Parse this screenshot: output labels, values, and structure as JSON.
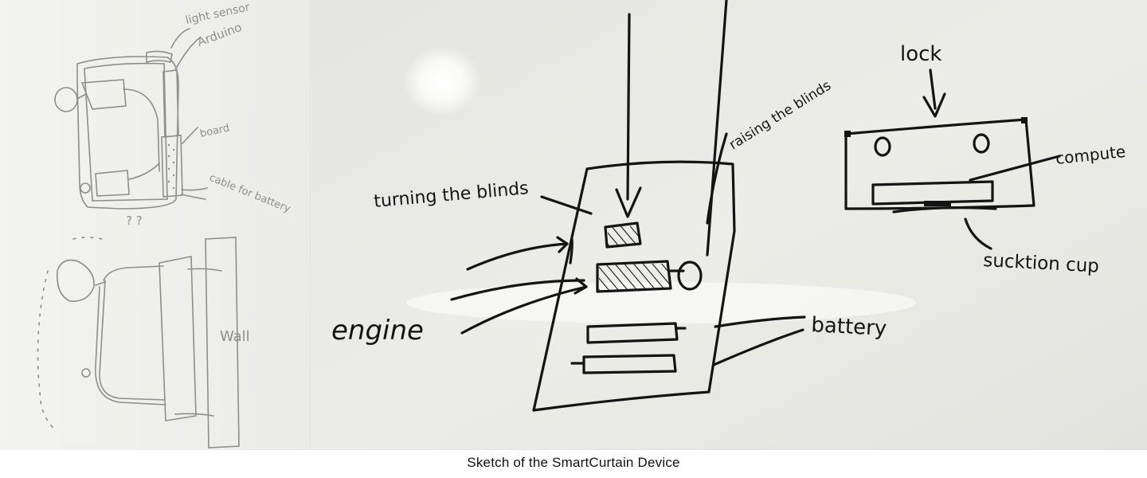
{
  "figure": {
    "caption": "Sketch of the SmartCurtain Device"
  },
  "paper_sketch": {
    "labels": {
      "light_sensor": "light sensor",
      "arduino": "Arduino",
      "board": "board",
      "cable_for_battery": "cable for battery",
      "question_marks": "? ?",
      "wall": "Wall"
    }
  },
  "whiteboard_sketch": {
    "labels": {
      "turning_the_blinds": "turning the blinds",
      "raising_the_blinds": "raising the blinds",
      "engine": "engine",
      "battery": "battery",
      "lock": "lock",
      "computer": "compute",
      "suction_cup": "sucktion cup"
    }
  },
  "colors": {
    "paper": "#efefec",
    "whiteboard": "#e9e9e6",
    "marker": "#141414",
    "pencil": "#8e8e8e"
  }
}
